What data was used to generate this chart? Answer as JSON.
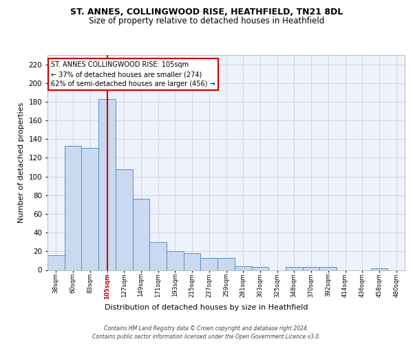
{
  "title1": "ST. ANNES, COLLINGWOOD RISE, HEATHFIELD, TN21 8DL",
  "title2": "Size of property relative to detached houses in Heathfield",
  "xlabel": "Distribution of detached houses by size in Heathfield",
  "ylabel": "Number of detached properties",
  "categories": [
    "38sqm",
    "60sqm",
    "83sqm",
    "105sqm",
    "127sqm",
    "149sqm",
    "171sqm",
    "193sqm",
    "215sqm",
    "237sqm",
    "259sqm",
    "281sqm",
    "303sqm",
    "325sqm",
    "348sqm",
    "370sqm",
    "392sqm",
    "414sqm",
    "436sqm",
    "458sqm",
    "480sqm"
  ],
  "values": [
    16,
    133,
    131,
    183,
    108,
    76,
    30,
    20,
    18,
    13,
    13,
    4,
    3,
    0,
    3,
    3,
    3,
    0,
    0,
    2,
    0
  ],
  "bar_color": "#c8d9f0",
  "bar_edge_color": "#5a8fc3",
  "property_index": 3,
  "vline_color": "#cc0000",
  "annotation_text": "ST. ANNES COLLINGWOOD RISE: 105sqm\n← 37% of detached houses are smaller (274)\n62% of semi-detached houses are larger (456) →",
  "annotation_box_color": "#ffffff",
  "annotation_box_edge": "#cc0000",
  "ylim": [
    0,
    230
  ],
  "yticks": [
    0,
    20,
    40,
    60,
    80,
    100,
    120,
    140,
    160,
    180,
    200,
    220
  ],
  "footnote": "Contains HM Land Registry data © Crown copyright and database right 2024.\nContains public sector information licensed under the Open Government Licence v3.0.",
  "grid_color": "#c8d0e0",
  "background_color": "#eef2fb",
  "fig_background": "#ffffff",
  "title1_fontsize": 9,
  "title2_fontsize": 8.5,
  "ylabel_fontsize": 8,
  "xlabel_fontsize": 8,
  "ytick_fontsize": 7.5,
  "xtick_fontsize": 6.2,
  "annot_fontsize": 7,
  "footnote_fontsize": 5.5
}
